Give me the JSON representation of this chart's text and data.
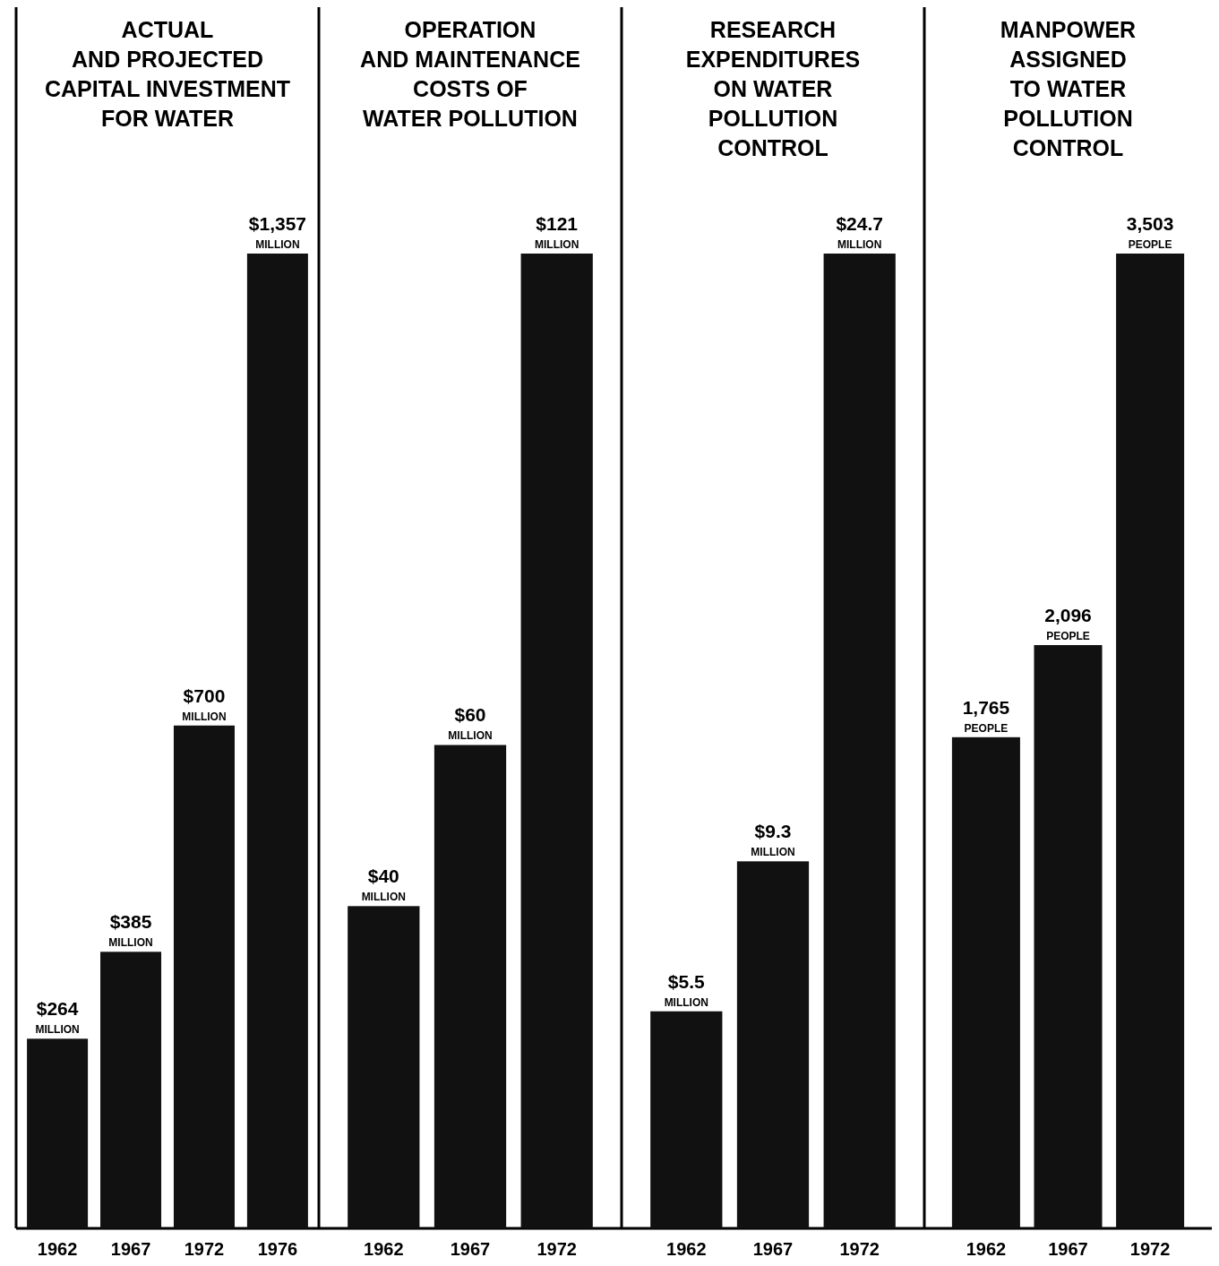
{
  "chart_data": [
    {
      "type": "bar",
      "title": "ACTUAL\nAND PROJECTED\nCAPITAL INVESTMENT\nFOR WATER",
      "categories": [
        "1962",
        "1967",
        "1972",
        "1976"
      ],
      "values": [
        264,
        385,
        700,
        1357
      ],
      "value_labels": [
        "$264\nMILLION",
        "$385\nMILLION",
        "$700\nMILLION",
        "$1,357\nMILLION"
      ],
      "color": "#111111"
    },
    {
      "type": "bar",
      "title": "OPERATION\nAND MAINTENANCE\nCOSTS OF\nWATER POLLUTION",
      "categories": [
        "1962",
        "1967",
        "1972"
      ],
      "values": [
        40,
        60,
        121
      ],
      "value_labels": [
        "$40\nMILLION",
        "$60\nMILLION",
        "$121\nMILLION"
      ],
      "color": "#111111"
    },
    {
      "type": "bar",
      "title": "RESEARCH\nEXPENDITURES\nON WATER\nPOLLUTION\nCONTROL",
      "categories": [
        "1962",
        "1967",
        "1972"
      ],
      "values": [
        5.5,
        9.3,
        24.7
      ],
      "value_labels": [
        "$5.5\nMILLION",
        "$9.3\nMILLION",
        "$24.7\nMILLION"
      ],
      "color": "#111111"
    },
    {
      "type": "bar",
      "title": "MANPOWER\nASSIGNED\nTO WATER\nPOLLUTION\nCONTROL",
      "categories": [
        "1962",
        "1967",
        "1972"
      ],
      "values": [
        1765,
        2096,
        3503
      ],
      "value_labels": [
        "1,765\nPEOPLE",
        "2,096\nPEOPLE",
        "3,503\nPEOPLE"
      ],
      "color": "#111111"
    }
  ]
}
